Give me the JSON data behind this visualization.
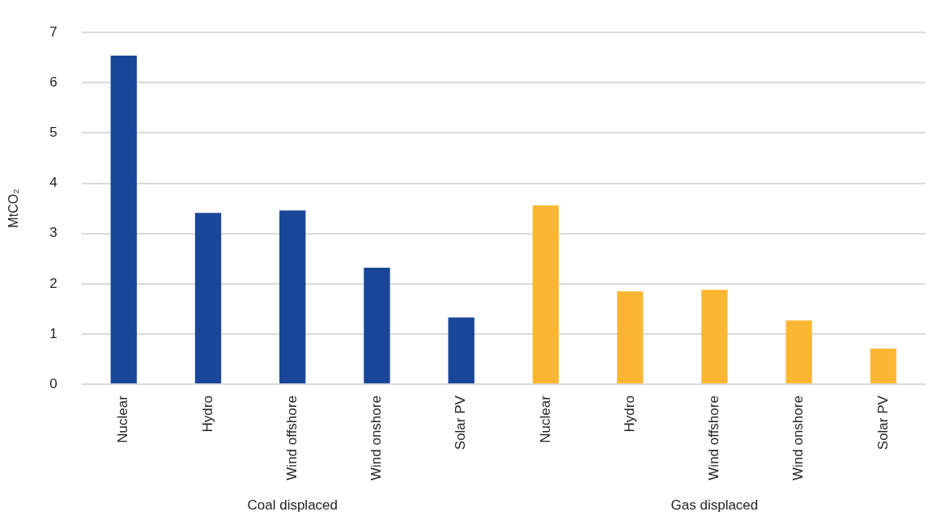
{
  "chart_data": {
    "type": "bar",
    "ylabel": "MtCO₂",
    "categories": [
      "Nuclear",
      "Hydro",
      "Wind offshore",
      "Wind onshore",
      "Solar PV",
      "Nuclear",
      "Hydro",
      "Wind offshore",
      "Wind onshore",
      "Solar PV"
    ],
    "values": [
      6.54,
      3.41,
      3.46,
      2.32,
      1.33,
      3.56,
      1.85,
      1.88,
      1.27,
      0.71
    ],
    "colors": [
      "#1a4699",
      "#1a4699",
      "#1a4699",
      "#1a4699",
      "#1a4699",
      "#fbb733",
      "#fbb733",
      "#fbb733",
      "#fbb733",
      "#fbb733"
    ],
    "annotations": [
      "Coal displaced",
      "Gas displaced"
    ],
    "ylim": [
      0,
      7
    ],
    "yticks": [
      0,
      1,
      2,
      3,
      4,
      5,
      6,
      7
    ],
    "grid": "y"
  }
}
